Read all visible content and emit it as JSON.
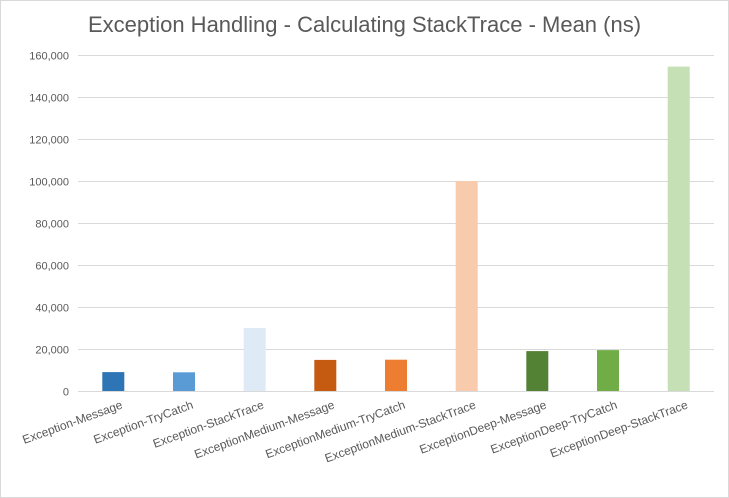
{
  "chart_data": {
    "type": "bar",
    "title": "Exception Handling - Calculating StackTrace - Mean (ns)",
    "xlabel": "",
    "ylabel": "",
    "ylim": [
      0,
      160000
    ],
    "yticks": [
      0,
      20000,
      40000,
      60000,
      80000,
      100000,
      120000,
      140000,
      160000
    ],
    "ytick_labels": [
      "0",
      "20,000",
      "40,000",
      "60,000",
      "80,000",
      "100,000",
      "120,000",
      "140,000",
      "160,000"
    ],
    "grid": true,
    "legend": "none",
    "categories": [
      "Exception-Message",
      "Exception-TryCatch",
      "Exception-StackTrace",
      "ExceptionMedium-Message",
      "ExceptionMedium-TryCatch",
      "ExceptionMedium-StackTrace",
      "ExceptionDeep-Message",
      "ExceptionDeep-TryCatch",
      "ExceptionDeep-StackTrace"
    ],
    "values": [
      9000,
      8900,
      30000,
      14800,
      14900,
      100000,
      19000,
      19500,
      154500
    ],
    "colors": [
      "#2e75b6",
      "#5b9bd5",
      "#deebf7",
      "#c55a11",
      "#ed7d31",
      "#f8cbad",
      "#548235",
      "#70ad47",
      "#c5e0b4"
    ]
  }
}
